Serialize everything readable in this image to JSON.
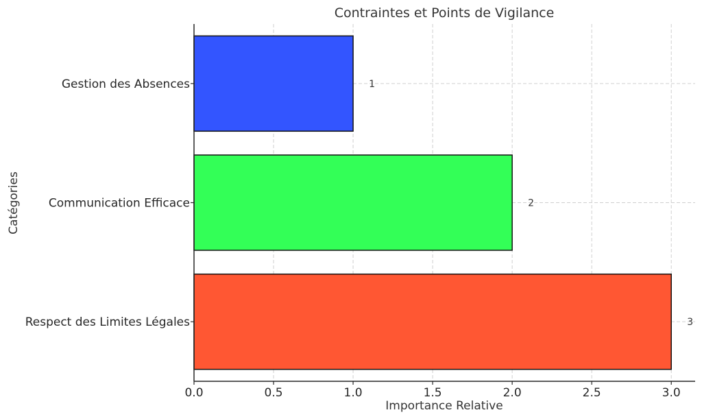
{
  "chart_data": {
    "type": "bar",
    "orientation": "horizontal",
    "title": "Contraintes et Points de Vigilance",
    "xlabel": "Importance Relative",
    "ylabel": "Catégories",
    "categories": [
      "Gestion des Absences",
      "Communication Efficace",
      "Respect des Limites Légales"
    ],
    "values": [
      1,
      2,
      3
    ],
    "data_labels": [
      "1",
      "2",
      "3"
    ],
    "colors": [
      "#3355ff",
      "#33ff57",
      "#ff5733"
    ],
    "xlim": [
      0,
      3.15
    ],
    "x_ticks": [
      0,
      0.5,
      1,
      1.5,
      2,
      2.5,
      3
    ],
    "x_tick_labels": [
      "0.0",
      "0.5",
      "1.0",
      "1.5",
      "2.0",
      "2.5",
      "3.0"
    ],
    "grid": true,
    "legend": "none"
  }
}
